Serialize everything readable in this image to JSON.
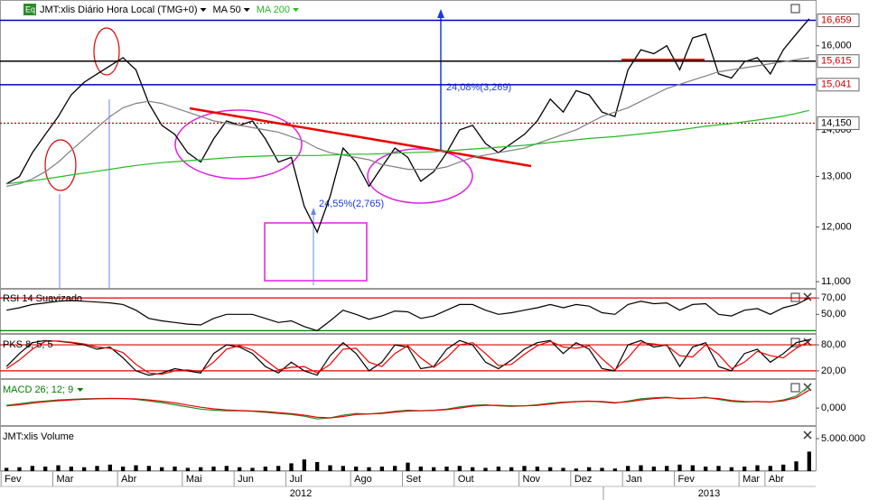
{
  "chart_data": [
    {
      "type": "line",
      "log": true,
      "badge": "Eq",
      "categories": [
        "Fev",
        null,
        null,
        null,
        "Mar",
        null,
        null,
        null,
        null,
        "Abr",
        null,
        null,
        null,
        null,
        "Mai",
        null,
        null,
        null,
        "Jun",
        null,
        null,
        null,
        "Jul",
        null,
        null,
        null,
        null,
        "Ago",
        null,
        null,
        null,
        "Set",
        null,
        null,
        null,
        "Out",
        null,
        null,
        null,
        null,
        "Nov",
        null,
        null,
        null,
        "Dez",
        null,
        null,
        null,
        "Jan",
        null,
        null,
        null,
        "Fev",
        null,
        null,
        null,
        null,
        "Mar",
        null,
        "Abr",
        null,
        null,
        null
      ],
      "year_labels": [
        "2012",
        "2013"
      ],
      "annotations": [
        "24,08%(3,269)",
        "24,55%(2,765)"
      ],
      "ylim": [
        10876,
        17157
      ],
      "yticks": [
        {
          "value": 11000,
          "label": "11,000"
        },
        {
          "value": 12000,
          "label": "12,000"
        },
        {
          "value": 13000,
          "label": "13,000"
        },
        {
          "value": 14000,
          "label": "14,000"
        },
        {
          "value": 16000,
          "label": "16,000"
        }
      ],
      "levels": [
        {
          "value": 16659,
          "label": "16,659",
          "color": "#0000cc",
          "text_color": "#cc0000"
        },
        {
          "value": 15615,
          "label": "15,615",
          "color": "#000000",
          "text_color": "#cc0000"
        },
        {
          "value": 15041,
          "label": "15,041",
          "color": "#0000cc",
          "text_color": "#cc0000"
        },
        {
          "value": 14150,
          "label": "14,150",
          "color": "#990000",
          "text_color": "#000000",
          "dotted": true
        }
      ],
      "series": [
        {
          "name": "JMT:xlis Diário Hora Local (TMG+0)",
          "color": "#000000",
          "values": [
            12850,
            13000,
            13500,
            13900,
            14300,
            14800,
            15100,
            15300,
            15500,
            15700,
            15400,
            14600,
            14100,
            13900,
            13500,
            13300,
            13800,
            14200,
            14100,
            14200,
            13800,
            13300,
            13400,
            12400,
            11900,
            12600,
            13600,
            13300,
            12800,
            13200,
            13600,
            13400,
            12900,
            13100,
            13500,
            14000,
            14100,
            13700,
            13500,
            13700,
            13900,
            14200,
            14700,
            14400,
            14900,
            14800,
            14400,
            14300,
            15400,
            15900,
            15800,
            16000,
            15400,
            16200,
            16300,
            15300,
            15200,
            15600,
            15700,
            15300,
            15900,
            16300,
            16700
          ]
        },
        {
          "name": "MA 50",
          "color": "#808080",
          "values": [
            12800,
            12850,
            12950,
            13100,
            13300,
            13550,
            13800,
            14050,
            14300,
            14500,
            14600,
            14650,
            14600,
            14500,
            14400,
            14300,
            14200,
            14150,
            14100,
            14050,
            14000,
            13950,
            13850,
            13750,
            13600,
            13500,
            13450,
            13400,
            13350,
            13250,
            13200,
            13150,
            13150,
            13150,
            13200,
            13300,
            13400,
            13450,
            13500,
            13550,
            13600,
            13700,
            13800,
            13900,
            14000,
            14150,
            14300,
            14400,
            14500,
            14650,
            14800,
            14950,
            15050,
            15150,
            15250,
            15350,
            15400,
            15450,
            15500,
            15550,
            15600,
            15650,
            15700
          ]
        },
        {
          "name": "MA 200",
          "color": "#22bb22",
          "values": [
            12850,
            12880,
            12910,
            12950,
            12990,
            13030,
            13070,
            13110,
            13150,
            13190,
            13230,
            13260,
            13290,
            13310,
            13330,
            13350,
            13370,
            13390,
            13410,
            13420,
            13430,
            13440,
            13440,
            13440,
            13440,
            13450,
            13460,
            13470,
            13470,
            13480,
            13490,
            13500,
            13510,
            13520,
            13540,
            13560,
            13580,
            13600,
            13620,
            13640,
            13660,
            13690,
            13720,
            13750,
            13780,
            13810,
            13830,
            13850,
            13880,
            13910,
            13940,
            13970,
            14000,
            14040,
            14080,
            14110,
            14140,
            14180,
            14220,
            14260,
            14310,
            14370,
            14440
          ]
        }
      ]
    },
    {
      "type": "line",
      "ylim": [
        26,
        79
      ],
      "yticks": [
        {
          "value": 70,
          "label": "70,00"
        },
        {
          "value": 50,
          "label": "50,00"
        }
      ],
      "ref_lines": [
        {
          "value": 70,
          "color": "#dd0000"
        },
        {
          "value": 30,
          "color": "#008000"
        }
      ],
      "series": [
        {
          "name": "RSI 14 Suavizado",
          "color": "#000000",
          "values": [
            55,
            58,
            62,
            64,
            66,
            67,
            66,
            65,
            64,
            62,
            55,
            45,
            42,
            40,
            38,
            37,
            45,
            50,
            50,
            50,
            45,
            40,
            42,
            35,
            30,
            42,
            55,
            50,
            44,
            48,
            54,
            53,
            45,
            48,
            55,
            62,
            62,
            55,
            50,
            52,
            55,
            58,
            62,
            58,
            62,
            60,
            52,
            50,
            62,
            66,
            63,
            64,
            55,
            62,
            63,
            50,
            48,
            55,
            57,
            50,
            58,
            62,
            70
          ]
        }
      ]
    },
    {
      "type": "line",
      "title": "PKS 8; 5; 5",
      "ylim": [
        1,
        101
      ],
      "yticks": [
        {
          "value": 80,
          "label": "80,00"
        },
        {
          "value": 20,
          "label": "20,00"
        }
      ],
      "ref_lines": [
        {
          "value": 80,
          "color": "#dd0000"
        },
        {
          "value": 20,
          "color": "#dd0000"
        }
      ],
      "series": [
        {
          "color": "#000000",
          "values": [
            30,
            60,
            85,
            90,
            88,
            85,
            80,
            70,
            75,
            50,
            20,
            10,
            15,
            25,
            20,
            15,
            60,
            80,
            75,
            60,
            30,
            15,
            40,
            20,
            10,
            55,
            85,
            60,
            20,
            40,
            80,
            75,
            25,
            30,
            70,
            90,
            80,
            40,
            25,
            45,
            70,
            85,
            90,
            60,
            85,
            70,
            25,
            20,
            80,
            90,
            75,
            80,
            30,
            75,
            85,
            30,
            20,
            60,
            70,
            40,
            60,
            85,
            92
          ]
        },
        {
          "color": "#ee0000",
          "values": [
            25,
            45,
            70,
            88,
            89,
            86,
            82,
            75,
            72,
            62,
            35,
            15,
            12,
            20,
            22,
            18,
            40,
            70,
            78,
            68,
            45,
            22,
            28,
            30,
            15,
            35,
            70,
            72,
            40,
            30,
            60,
            78,
            50,
            28,
            50,
            80,
            85,
            60,
            32,
            35,
            58,
            78,
            88,
            75,
            72,
            78,
            48,
            22,
            50,
            85,
            82,
            78,
            55,
            52,
            80,
            58,
            25,
            40,
            65,
            55,
            50,
            72,
            88
          ]
        }
      ]
    },
    {
      "type": "line",
      "title": "MACD 26; 12; 9",
      "title_color": "#008000",
      "ylim": [
        -330,
        500
      ],
      "yticks": [
        {
          "value": 0,
          "label": "0,000"
        }
      ],
      "series": [
        {
          "color": "#2a8a2a",
          "values": [
            50,
            80,
            110,
            130,
            150,
            160,
            170,
            175,
            180,
            175,
            160,
            130,
            100,
            60,
            20,
            -20,
            -40,
            -50,
            -50,
            -60,
            -80,
            -100,
            -120,
            -150,
            -200,
            -180,
            -130,
            -100,
            -110,
            -90,
            -60,
            -40,
            -50,
            -40,
            -20,
            20,
            50,
            60,
            40,
            30,
            40,
            60,
            90,
            110,
            120,
            130,
            110,
            90,
            130,
            170,
            190,
            200,
            170,
            180,
            200,
            160,
            120,
            110,
            120,
            110,
            150,
            220,
            400
          ]
        },
        {
          "color": "#ee0000",
          "values": [
            40,
            60,
            90,
            115,
            135,
            150,
            162,
            170,
            175,
            175,
            168,
            150,
            125,
            95,
            55,
            15,
            -15,
            -35,
            -45,
            -55,
            -65,
            -85,
            -105,
            -130,
            -170,
            -180,
            -155,
            -120,
            -110,
            -100,
            -75,
            -55,
            -50,
            -45,
            -30,
            0,
            35,
            50,
            50,
            40,
            40,
            50,
            75,
            100,
            115,
            125,
            120,
            100,
            115,
            150,
            175,
            190,
            180,
            180,
            190,
            175,
            140,
            120,
            118,
            112,
            135,
            190,
            330
          ]
        }
      ]
    },
    {
      "type": "bar",
      "title": "JMT:xlis Volume",
      "ylim": [
        0,
        6670000
      ],
      "yticks": [
        {
          "value": 5000000,
          "label": "5.000.000"
        }
      ],
      "series": [
        {
          "color": "#000000",
          "values": [
            500000,
            600000,
            800000,
            700000,
            900000,
            700000,
            600000,
            800000,
            1000000,
            700000,
            900000,
            800000,
            600000,
            700000,
            500000,
            600000,
            700000,
            800000,
            600000,
            500000,
            700000,
            800000,
            1200000,
            1800000,
            1400000,
            900000,
            800000,
            700000,
            600000,
            700000,
            800000,
            1300000,
            700000,
            600000,
            700000,
            800000,
            600000,
            500000,
            700000,
            600000,
            800000,
            700000,
            600000,
            500000,
            400000,
            600000,
            500000,
            400000,
            800000,
            900000,
            700000,
            800000,
            1000000,
            900000,
            700000,
            800000,
            600000,
            700000,
            900000,
            800000,
            1000000,
            1500000,
            3000000
          ]
        }
      ]
    }
  ]
}
